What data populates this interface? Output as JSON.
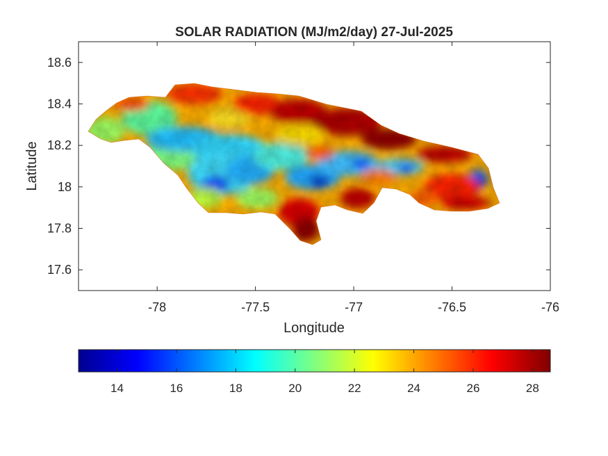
{
  "title": "SOLAR RADIATION (MJ/m2/day) 27-Jul-2025",
  "xlabel": "Longitude",
  "ylabel": "Latitude",
  "x_ticks": [
    "-78",
    "-77.5",
    "-77",
    "-76.5",
    "-76"
  ],
  "y_ticks": [
    "18.6",
    "18.4",
    "18.2",
    "18",
    "17.8",
    "17.6"
  ],
  "colorbar": {
    "colormap": "jet",
    "range": [
      12.7,
      28.6
    ],
    "ticks": [
      "14",
      "16",
      "18",
      "20",
      "22",
      "24",
      "26",
      "28"
    ]
  },
  "chart_data": {
    "type": "heatmap",
    "title": "SOLAR RADIATION (MJ/m2/day) 27-Jul-2025",
    "xlabel": "Longitude",
    "ylabel": "Latitude",
    "xlim": [
      -78.4,
      -76
    ],
    "ylim": [
      17.5,
      18.7
    ],
    "clim": [
      12.7,
      28.6
    ],
    "colors": {
      "jet_stops": [
        "#00008f",
        "#0000ff",
        "#00ffff",
        "#ffff00",
        "#ff0000",
        "#800000"
      ]
    }
  }
}
